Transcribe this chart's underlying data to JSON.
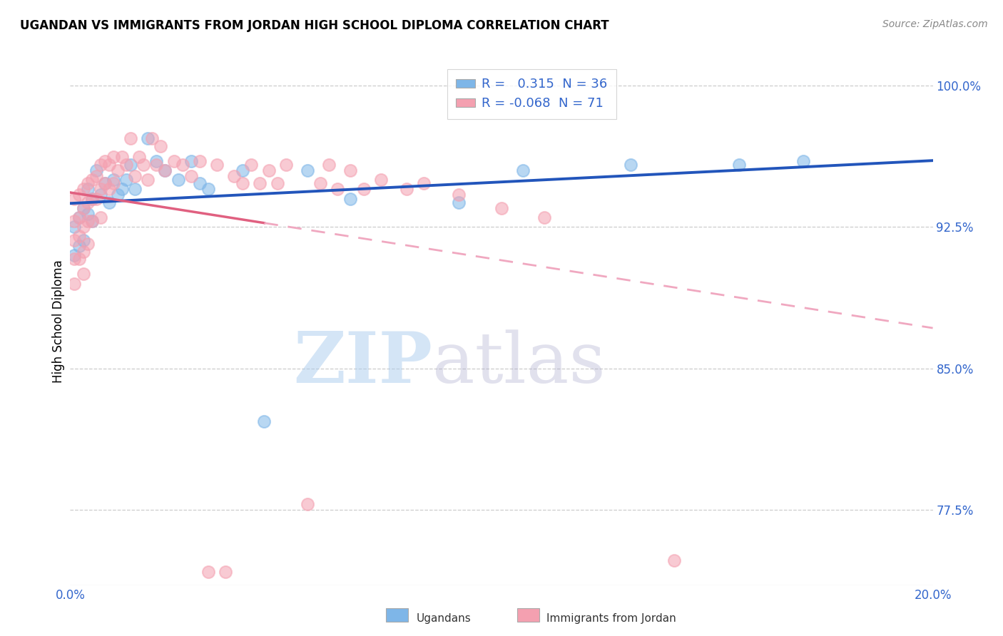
{
  "title": "UGANDAN VS IMMIGRANTS FROM JORDAN HIGH SCHOOL DIPLOMA CORRELATION CHART",
  "source": "Source: ZipAtlas.com",
  "ylabel": "High School Diploma",
  "xlim": [
    0.0,
    0.2
  ],
  "ylim": [
    0.735,
    1.015
  ],
  "R_blue": 0.315,
  "N_blue": 36,
  "R_pink": -0.068,
  "N_pink": 71,
  "watermark_zip": "ZIP",
  "watermark_atlas": "atlas",
  "blue_color": "#7EB6E8",
  "pink_color": "#F4A0B0",
  "blue_line_color": "#2255BB",
  "pink_line_solid_color": "#E06080",
  "pink_line_dash_color": "#F0A8C0",
  "ytick_vals": [
    0.775,
    0.85,
    0.925,
    1.0
  ],
  "ytick_labels": [
    "77.5%",
    "85.0%",
    "92.5%",
    "100.0%"
  ],
  "blue_scatter_x": [
    0.001,
    0.001,
    0.002,
    0.002,
    0.003,
    0.003,
    0.004,
    0.004,
    0.005,
    0.005,
    0.006,
    0.007,
    0.008,
    0.009,
    0.01,
    0.011,
    0.012,
    0.013,
    0.014,
    0.015,
    0.018,
    0.02,
    0.022,
    0.025,
    0.028,
    0.03,
    0.032,
    0.04,
    0.045,
    0.055,
    0.065,
    0.09,
    0.105,
    0.13,
    0.155,
    0.17
  ],
  "blue_scatter_y": [
    0.925,
    0.91,
    0.93,
    0.915,
    0.935,
    0.918,
    0.945,
    0.932,
    0.94,
    0.928,
    0.955,
    0.942,
    0.948,
    0.938,
    0.95,
    0.942,
    0.945,
    0.95,
    0.958,
    0.945,
    0.972,
    0.96,
    0.955,
    0.95,
    0.96,
    0.948,
    0.945,
    0.955,
    0.822,
    0.955,
    0.94,
    0.938,
    0.955,
    0.958,
    0.958,
    0.96
  ],
  "pink_scatter_x": [
    0.001,
    0.001,
    0.001,
    0.001,
    0.001,
    0.002,
    0.002,
    0.002,
    0.002,
    0.003,
    0.003,
    0.003,
    0.003,
    0.003,
    0.004,
    0.004,
    0.004,
    0.004,
    0.005,
    0.005,
    0.005,
    0.006,
    0.006,
    0.007,
    0.007,
    0.007,
    0.008,
    0.008,
    0.009,
    0.009,
    0.01,
    0.01,
    0.011,
    0.012,
    0.013,
    0.014,
    0.015,
    0.016,
    0.017,
    0.018,
    0.019,
    0.02,
    0.021,
    0.022,
    0.024,
    0.026,
    0.028,
    0.03,
    0.032,
    0.034,
    0.036,
    0.038,
    0.04,
    0.042,
    0.044,
    0.046,
    0.048,
    0.05,
    0.055,
    0.058,
    0.06,
    0.062,
    0.065,
    0.068,
    0.072,
    0.078,
    0.082,
    0.09,
    0.1,
    0.11,
    0.14
  ],
  "pink_scatter_y": [
    0.94,
    0.928,
    0.918,
    0.908,
    0.895,
    0.942,
    0.93,
    0.92,
    0.908,
    0.945,
    0.935,
    0.925,
    0.912,
    0.9,
    0.948,
    0.938,
    0.928,
    0.916,
    0.95,
    0.94,
    0.928,
    0.952,
    0.94,
    0.958,
    0.945,
    0.93,
    0.96,
    0.948,
    0.958,
    0.945,
    0.962,
    0.948,
    0.955,
    0.962,
    0.958,
    0.972,
    0.952,
    0.962,
    0.958,
    0.95,
    0.972,
    0.958,
    0.968,
    0.955,
    0.96,
    0.958,
    0.952,
    0.96,
    0.742,
    0.958,
    0.742,
    0.952,
    0.948,
    0.958,
    0.948,
    0.955,
    0.948,
    0.958,
    0.778,
    0.948,
    0.958,
    0.945,
    0.955,
    0.945,
    0.95,
    0.945,
    0.948,
    0.942,
    0.935,
    0.93,
    0.748
  ]
}
